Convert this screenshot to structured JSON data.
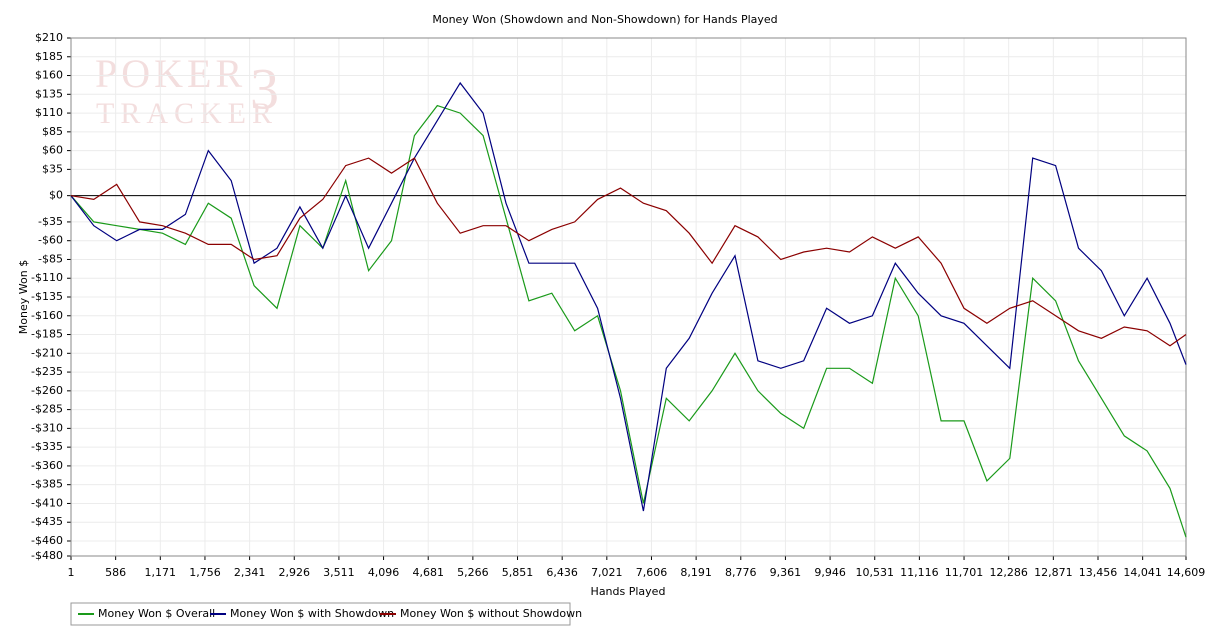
{
  "chart_data": {
    "type": "line",
    "title": "Money Won (Showdown and Non-Showdown) for Hands Played",
    "x_label": "Hands Played",
    "y_label": "Money Won $",
    "watermark": {
      "line1": "POKER",
      "line2": "TRACKER",
      "mark": "3"
    },
    "x": [
      1,
      300,
      600,
      900,
      1200,
      1500,
      1800,
      2100,
      2400,
      2700,
      3000,
      3300,
      3600,
      3900,
      4200,
      4500,
      4800,
      5100,
      5400,
      5700,
      6000,
      6300,
      6600,
      6900,
      7200,
      7500,
      7800,
      8100,
      8400,
      8700,
      9000,
      9300,
      9600,
      9900,
      10200,
      10500,
      10800,
      11100,
      11400,
      11700,
      12000,
      12300,
      12600,
      12900,
      13200,
      13500,
      13800,
      14100,
      14400,
      14609
    ],
    "series": [
      {
        "name": "Money Won $ Overall",
        "color": "#1a9a1a",
        "values": [
          0,
          -35,
          -40,
          -45,
          -50,
          -65,
          -10,
          -30,
          -120,
          -150,
          -40,
          -70,
          20,
          -100,
          -60,
          80,
          120,
          110,
          80,
          -30,
          -140,
          -130,
          -180,
          -160,
          -260,
          -410,
          -270,
          -300,
          -260,
          -210,
          -260,
          -290,
          -310,
          -230,
          -230,
          -250,
          -110,
          -160,
          -300,
          -300,
          -380,
          -350,
          -110,
          -140,
          -220,
          -270,
          -320,
          -340,
          -390,
          -455
        ]
      },
      {
        "name": "Money Won $ with Showdown",
        "color": "#000080",
        "values": [
          0,
          -40,
          -60,
          -45,
          -45,
          -25,
          60,
          20,
          -90,
          -70,
          -15,
          -70,
          0,
          -70,
          -10,
          50,
          100,
          150,
          110,
          -10,
          -90,
          -90,
          -90,
          -150,
          -270,
          -420,
          -230,
          -190,
          -130,
          -80,
          -220,
          -230,
          -220,
          -150,
          -170,
          -160,
          -90,
          -130,
          -160,
          -170,
          -200,
          -230,
          50,
          40,
          -70,
          -100,
          -160,
          -110,
          -170,
          -225
        ]
      },
      {
        "name": "Money Won $ without Showdown",
        "color": "#8b0000",
        "values": [
          0,
          -5,
          15,
          -35,
          -40,
          -50,
          -65,
          -65,
          -85,
          -80,
          -30,
          -5,
          40,
          50,
          30,
          50,
          -10,
          -50,
          -40,
          -40,
          -60,
          -45,
          -35,
          -5,
          10,
          -10,
          -20,
          -50,
          -90,
          -40,
          -55,
          -85,
          -75,
          -70,
          -75,
          -55,
          -70,
          -55,
          -90,
          -150,
          -170,
          -150,
          -140,
          -160,
          -180,
          -190,
          -175,
          -180,
          -200,
          -185
        ]
      }
    ],
    "xlim": [
      1,
      14609
    ],
    "xticks": [
      1,
      586,
      {
        "value": 1171,
        "label": "1,171"
      },
      {
        "value": 1756,
        "label": "1,756"
      },
      {
        "value": 2341,
        "label": "2,341"
      },
      {
        "value": 2926,
        "label": "2,926"
      },
      {
        "value": 3511,
        "label": "3,511"
      },
      {
        "value": 4096,
        "label": "4,096"
      },
      {
        "value": 4681,
        "label": "4,681"
      },
      {
        "value": 5266,
        "label": "5,266"
      },
      {
        "value": 5851,
        "label": "5,851"
      },
      {
        "value": 6436,
        "label": "6,436"
      },
      {
        "value": 7021,
        "label": "7,021"
      },
      {
        "value": 7606,
        "label": "7,606"
      },
      {
        "value": 8191,
        "label": "8,191"
      },
      {
        "value": 8776,
        "label": "8,776"
      },
      {
        "value": 9361,
        "label": "9,361"
      },
      {
        "value": 9946,
        "label": "9,946"
      },
      {
        "value": 10531,
        "label": "10,531"
      },
      {
        "value": 11116,
        "label": "11,116"
      },
      {
        "value": 11701,
        "label": "11,701"
      },
      {
        "value": 12286,
        "label": "12,286"
      },
      {
        "value": 12871,
        "label": "12,871"
      },
      {
        "value": 13456,
        "label": "13,456"
      },
      {
        "value": 14041,
        "label": "14,041"
      },
      {
        "value": 14609,
        "label": "14,609"
      }
    ],
    "ylim": [
      -480,
      210
    ],
    "yticks": [
      {
        "value": 210,
        "label": "$210"
      },
      {
        "value": 185,
        "label": "$185"
      },
      {
        "value": 160,
        "label": "$160"
      },
      {
        "value": 135,
        "label": "$135"
      },
      {
        "value": 110,
        "label": "$110"
      },
      {
        "value": 85,
        "label": "$85"
      },
      {
        "value": 60,
        "label": "$60"
      },
      {
        "value": 35,
        "label": "$35"
      },
      {
        "value": 0,
        "label": "$0"
      },
      {
        "value": -35,
        "label": "-$35"
      },
      {
        "value": -60,
        "label": "-$60"
      },
      {
        "value": -85,
        "label": "-$85"
      },
      {
        "value": -110,
        "label": "-$110"
      },
      {
        "value": -135,
        "label": "-$135"
      },
      {
        "value": -160,
        "label": "-$160"
      },
      {
        "value": -185,
        "label": "-$185"
      },
      {
        "value": -210,
        "label": "-$210"
      },
      {
        "value": -235,
        "label": "-$235"
      },
      {
        "value": -260,
        "label": "-$260"
      },
      {
        "value": -285,
        "label": "-$285"
      },
      {
        "value": -310,
        "label": "-$310"
      },
      {
        "value": -335,
        "label": "-$335"
      },
      {
        "value": -360,
        "label": "-$360"
      },
      {
        "value": -385,
        "label": "-$385"
      },
      {
        "value": -410,
        "label": "-$410"
      },
      {
        "value": -435,
        "label": "-$435"
      },
      {
        "value": -460,
        "label": "-$460"
      },
      {
        "value": -480,
        "label": "-$480"
      }
    ],
    "grid": true,
    "legend": "bottom-left"
  }
}
